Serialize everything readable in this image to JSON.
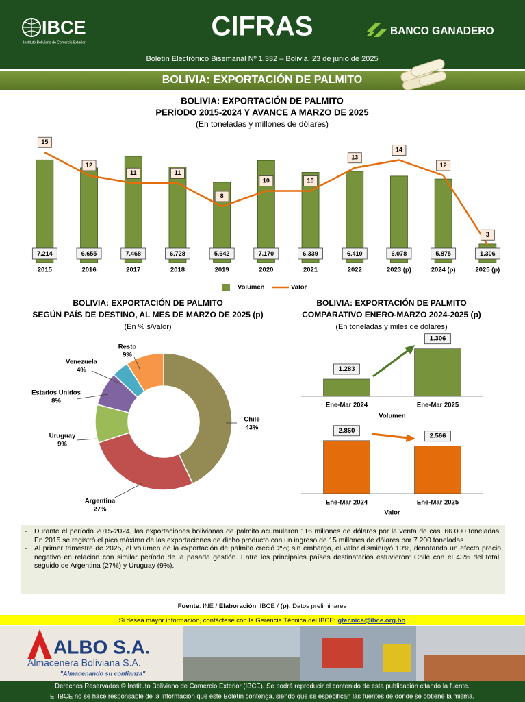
{
  "header": {
    "logo": "IBCE",
    "logo_subtitle": "Instituto Boliviano de Comercio Exterior",
    "title": "CIFRAS",
    "sponsor": "BANCO GANADERO",
    "bulletin": "Boletín Electrónico Bisemanal Nº 1.332 – Bolivia, 23 de junio de 2025",
    "banner": "BOLIVIA: EXPORTACIÓN DE PALMITO"
  },
  "chart_data": [
    {
      "type": "bar",
      "title": "BOLIVIA: EXPORTACIÓN DE PALMITO",
      "subtitle": "PERÍODO 2015-2024 Y AVANCE A MARZO DE 2025",
      "unit": "(En toneladas y millones de dólares)",
      "categories": [
        "2015",
        "2016",
        "2017",
        "2018",
        "2019",
        "2020",
        "2021",
        "2022",
        "2023 (p)",
        "2024 (p)",
        "2025 (p)"
      ],
      "series": [
        {
          "name": "Volumen",
          "type": "bar",
          "color": "#77933c",
          "values": [
            7214,
            6655,
            7468,
            6728,
            5642,
            7170,
            6339,
            6410,
            6078,
            5875,
            1306
          ],
          "value_labels": [
            "7.214",
            "6.655",
            "7.468",
            "6.728",
            "5.642",
            "7.170",
            "6.339",
            "6.410",
            "6.078",
            "5.875",
            "1.306"
          ]
        },
        {
          "name": "Valor",
          "type": "line",
          "axis": "y2",
          "color": "#e46c0a",
          "values": [
            15,
            12,
            11,
            11,
            8,
            10,
            10,
            13,
            14,
            12,
            3
          ]
        }
      ],
      "ylim": [
        0,
        8000
      ],
      "y2lim": [
        0,
        16
      ],
      "legend": "bottom"
    },
    {
      "type": "donut",
      "title": "BOLIVIA: EXPORTACIÓN DE PALMITO",
      "subtitle": "SEGÚN PAÍS DE DESTINO, AL MES DE MARZO DE 2025 (p)",
      "unit": "(En % s/valor)",
      "categories": [
        "Chile",
        "Argentina",
        "Uruguay",
        "Estados Unidos",
        "Venezuela",
        "Resto"
      ],
      "values": [
        43,
        27,
        9,
        8,
        4,
        9
      ],
      "value_labels": [
        "43%",
        "27%",
        "9%",
        "8%",
        "4%",
        "9%"
      ],
      "colors": [
        "#948a54",
        "#c0504d",
        "#9bbb59",
        "#8064a2",
        "#4bacc6",
        "#f79646"
      ]
    },
    {
      "type": "bar",
      "title": "BOLIVIA: EXPORTACIÓN DE PALMITO",
      "subtitle": "COMPARATIVO ENERO-MARZO 2024-2025 (p)",
      "unit": "(En toneladas y miles de dólares)",
      "categories": [
        "Ene-Mar 2024",
        "Ene-Mar 2025"
      ],
      "values": [
        1283,
        1306
      ],
      "value_labels": [
        "1.283",
        "1.306"
      ],
      "color": "#77933c",
      "xlabel": "Volumen",
      "ylim": [
        1270,
        1310
      ]
    },
    {
      "type": "bar",
      "categories": [
        "Ene-Mar 2024",
        "Ene-Mar 2025"
      ],
      "values": [
        2860,
        2566
      ],
      "value_labels": [
        "2.860",
        "2.566"
      ],
      "color": "#e46c0a",
      "xlabel": "Valor",
      "ylim": [
        0,
        3000
      ]
    }
  ],
  "bullets": [
    "Durante el período 2015-2024, las exportaciones bolivianas de palmito acumularon 116 millones de dólares por la venta de casi 66.000 toneladas. En 2015 se registró el pico máximo de las exportaciones de dicho producto con un ingreso de 15 millones de dólares por 7.200 toneladas.",
    "Al primer trimestre de 2025, el volumen de la exportación de palmito creció 2%; sin embargo, el valor disminuyó 10%, denotando un efecto precio negativo en relación con similar período de la pasada gestión. Entre los principales países destinatarios estuvieron: Chile con el 43% del total, seguido de  Argentina (27%) y Uruguay (9%)."
  ],
  "source": [
    "Fuente",
    ":  INE / ",
    "Elaboración",
    ": IBCE / ",
    "(p)",
    ": Datos preliminares"
  ],
  "contact": {
    "text": "Si desea mayor información, contáctese con la Gerencia Técnica del IBCE:",
    "email": "gtecnica@ibce.org.bo"
  },
  "ad": {
    "brand": "ALBO S.A.",
    "name": "Almacenera Boliviana S.A.",
    "slogan": "\"Almacenando su confianza\""
  },
  "footer": [
    "Derechos Reservados © Instituto Boliviano de Comercio Exterior (IBCE). Se podrá reproducir el contenido de esta publicación citando la fuente.",
    "El IBCE no se hace responsable de la información que este Boletín contenga, siendo que se especifican las fuentes de donde se obtiene la misma."
  ]
}
